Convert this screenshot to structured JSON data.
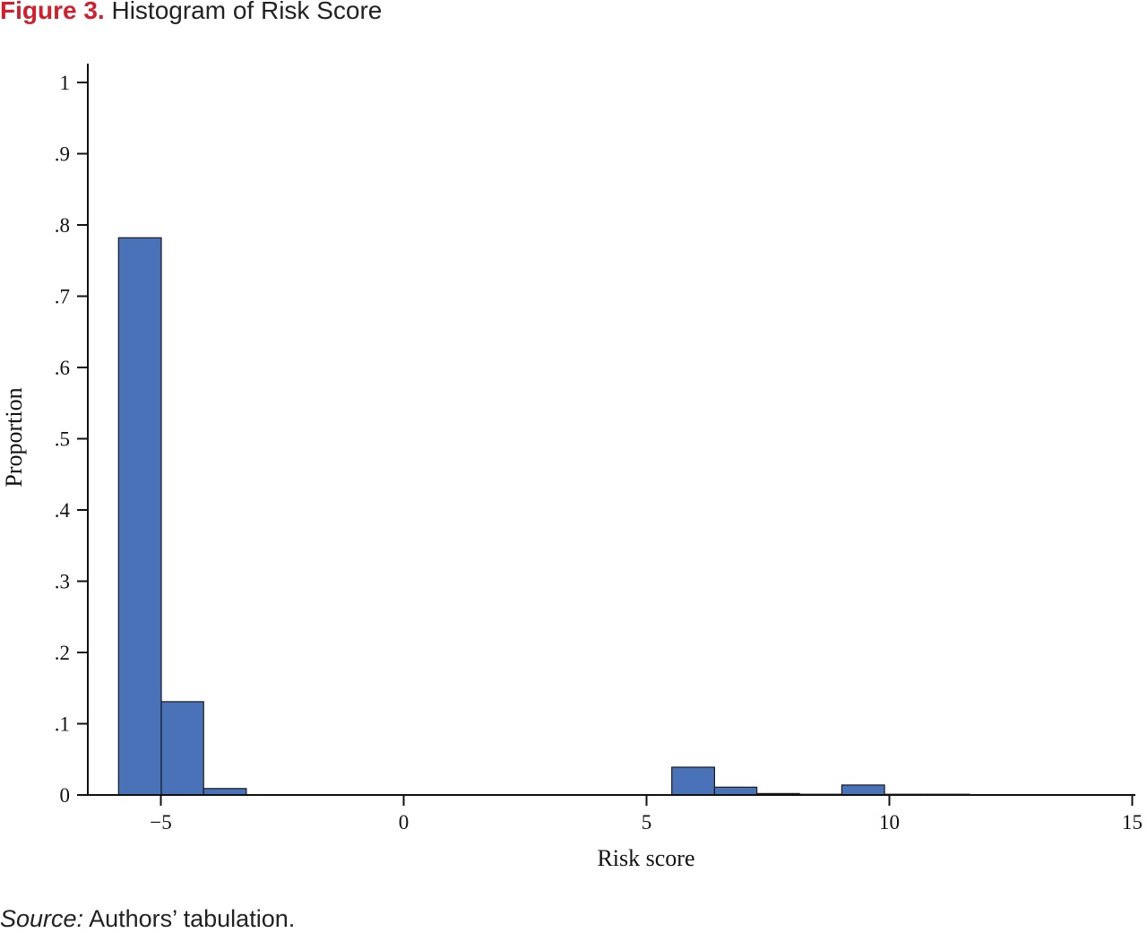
{
  "figure": {
    "label": "Figure 3.",
    "title": "Histogram of Risk Score"
  },
  "source": {
    "label": "Source:",
    "text": "Authors’ tabulation."
  },
  "colors": {
    "bar_fill": "#4a72b8",
    "bar_stroke": "#1a1a1a",
    "axis": "#111111",
    "label_red": "#d0202e"
  },
  "chart_data": {
    "type": "bar",
    "subtype": "histogram",
    "title": "",
    "xlabel": "Risk score",
    "ylabel": "Proportion",
    "xlim": [
      -6.5,
      15
    ],
    "ylim": [
      0,
      1.03
    ],
    "x_ticks": [
      {
        "value": -5,
        "label": "−5"
      },
      {
        "value": 0,
        "label": "0"
      },
      {
        "value": 5,
        "label": "5"
      },
      {
        "value": 10,
        "label": "10"
      },
      {
        "value": 15,
        "label": "15"
      }
    ],
    "y_ticks": [
      {
        "value": 0,
        "label": "0"
      },
      {
        "value": 0.1,
        "label": ".1"
      },
      {
        "value": 0.2,
        "label": ".2"
      },
      {
        "value": 0.3,
        "label": ".3"
      },
      {
        "value": 0.4,
        "label": ".4"
      },
      {
        "value": 0.5,
        "label": ".5"
      },
      {
        "value": 0.6,
        "label": ".6"
      },
      {
        "value": 0.7,
        "label": ".7"
      },
      {
        "value": 0.8,
        "label": ".8"
      },
      {
        "value": 0.9,
        "label": ".9"
      },
      {
        "value": 1,
        "label": "1"
      }
    ],
    "grid": false,
    "legend": "none",
    "bins": [
      {
        "x0": -5.87,
        "x1": -4.99,
        "value": 0.782
      },
      {
        "x0": -4.99,
        "x1": -4.12,
        "value": 0.131
      },
      {
        "x0": -4.12,
        "x1": -3.24,
        "value": 0.009
      },
      {
        "x0": 5.52,
        "x1": 6.4,
        "value": 0.039
      },
      {
        "x0": 6.4,
        "x1": 7.27,
        "value": 0.011
      },
      {
        "x0": 7.27,
        "x1": 8.15,
        "value": 0.002
      },
      {
        "x0": 8.15,
        "x1": 9.02,
        "value": 0.001
      },
      {
        "x0": 9.02,
        "x1": 9.9,
        "value": 0.014
      },
      {
        "x0": 9.9,
        "x1": 10.78,
        "value": 0.001
      },
      {
        "x0": 10.78,
        "x1": 11.65,
        "value": 0.001
      }
    ]
  }
}
